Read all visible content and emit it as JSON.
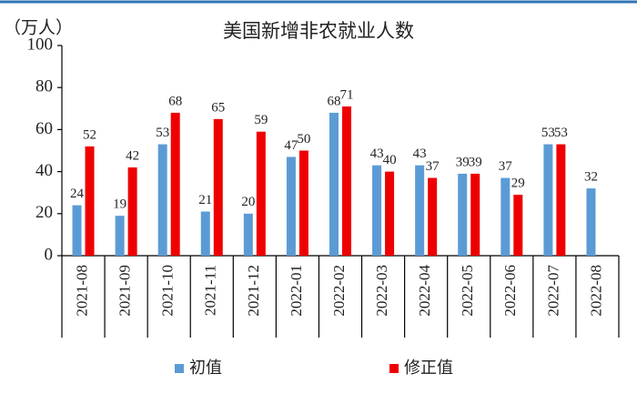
{
  "chart_data": {
    "type": "bar",
    "title": "美国新增非农就业人数",
    "y_label": "（万人）",
    "categories": [
      "2021-08",
      "2021-09",
      "2021-10",
      "2021-11",
      "2021-12",
      "2022-01",
      "2022-02",
      "2022-03",
      "2022-04",
      "2022-05",
      "2022-06",
      "2022-07",
      "2022-08"
    ],
    "series": [
      {
        "name": "初值",
        "color": "#5b9bd5",
        "values": [
          24,
          19,
          53,
          21,
          20,
          47,
          68,
          43,
          43,
          39,
          37,
          53,
          32
        ]
      },
      {
        "name": "修正值",
        "color": "#ee0000",
        "values": [
          52,
          42,
          68,
          65,
          59,
          50,
          71,
          40,
          37,
          39,
          29,
          53,
          null
        ]
      }
    ],
    "ylim": [
      0,
      100
    ],
    "yticks": [
      0,
      20,
      40,
      60,
      80,
      100
    ],
    "grid": false
  }
}
